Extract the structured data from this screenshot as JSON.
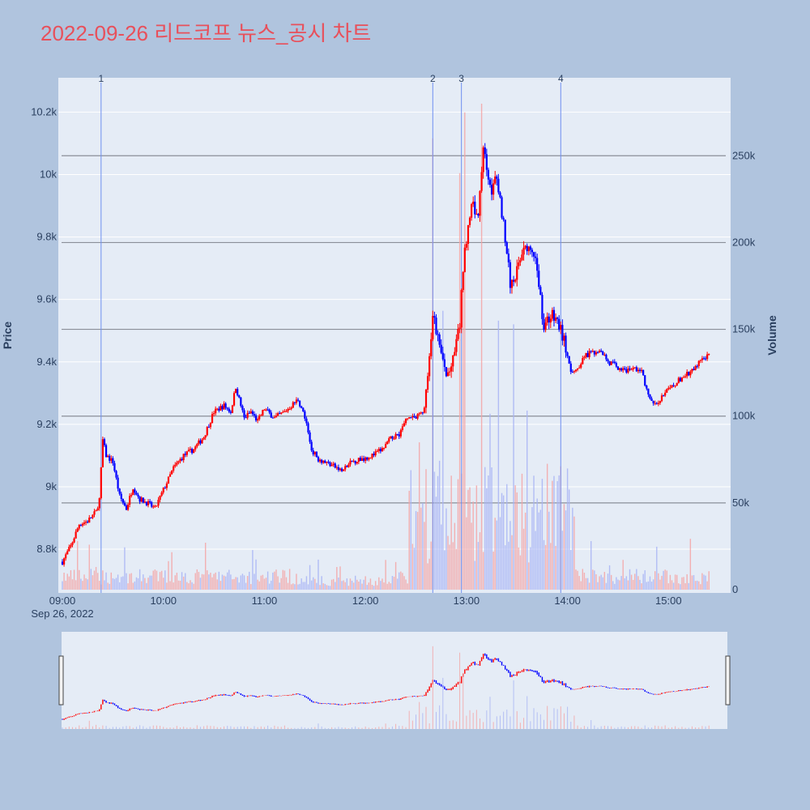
{
  "colors": {
    "background": "#b0c4de",
    "plot_bg": "#e5ecf6",
    "up": "#ff0000",
    "down": "#0000ff",
    "title": "#e8505b",
    "vline": "#6f8ff0"
  },
  "chart_data": {
    "type": "candlestick",
    "title": "2022-09-26 리드코프 뉴스_공시 차트",
    "ylabel": "Price",
    "y2label": "Volume",
    "x_date_label": "Sep 26, 2022",
    "x_ticks": [
      "09:00",
      "10:00",
      "11:00",
      "12:00",
      "13:00",
      "14:00",
      "15:00"
    ],
    "y_ticks": [
      "8.8k",
      "9k",
      "9.2k",
      "9.4k",
      "9.6k",
      "9.8k",
      "10k",
      "10.2k"
    ],
    "y_tick_values": [
      8800,
      9000,
      9200,
      9400,
      9600,
      9800,
      10000,
      10200
    ],
    "y2_ticks": [
      "0",
      "50k",
      "100k",
      "150k",
      "200k",
      "250k"
    ],
    "y2_tick_values": [
      0,
      50000,
      100000,
      150000,
      200000,
      250000
    ],
    "x_range_minutes": [
      0,
      394
    ],
    "price_range": [
      8660,
      10310
    ],
    "volume_range": [
      0,
      280000
    ],
    "annotations": [
      {
        "label": "1",
        "minute": 23
      },
      {
        "label": "2",
        "minute": 220
      },
      {
        "label": "3",
        "minute": 237
      },
      {
        "label": "4",
        "minute": 296
      }
    ],
    "price_path": [
      [
        0,
        8760
      ],
      [
        5,
        8810
      ],
      [
        10,
        8880
      ],
      [
        15,
        8890
      ],
      [
        20,
        8920
      ],
      [
        22,
        8960
      ],
      [
        24,
        9150
      ],
      [
        26,
        9100
      ],
      [
        30,
        9080
      ],
      [
        34,
        8970
      ],
      [
        38,
        8930
      ],
      [
        42,
        9000
      ],
      [
        46,
        8960
      ],
      [
        50,
        8950
      ],
      [
        55,
        8930
      ],
      [
        60,
        8990
      ],
      [
        66,
        9060
      ],
      [
        72,
        9100
      ],
      [
        78,
        9120
      ],
      [
        84,
        9160
      ],
      [
        90,
        9240
      ],
      [
        96,
        9260
      ],
      [
        100,
        9240
      ],
      [
        103,
        9320
      ],
      [
        108,
        9220
      ],
      [
        112,
        9240
      ],
      [
        116,
        9210
      ],
      [
        120,
        9250
      ],
      [
        126,
        9220
      ],
      [
        132,
        9240
      ],
      [
        136,
        9260
      ],
      [
        140,
        9280
      ],
      [
        144,
        9220
      ],
      [
        148,
        9120
      ],
      [
        152,
        9090
      ],
      [
        156,
        9080
      ],
      [
        160,
        9070
      ],
      [
        166,
        9050
      ],
      [
        172,
        9080
      ],
      [
        178,
        9090
      ],
      [
        184,
        9100
      ],
      [
        190,
        9120
      ],
      [
        196,
        9160
      ],
      [
        200,
        9170
      ],
      [
        206,
        9230
      ],
      [
        210,
        9220
      ],
      [
        215,
        9250
      ],
      [
        218,
        9400
      ],
      [
        220,
        9550
      ],
      [
        224,
        9450
      ],
      [
        228,
        9350
      ],
      [
        232,
        9400
      ],
      [
        236,
        9520
      ],
      [
        238,
        9700
      ],
      [
        241,
        9850
      ],
      [
        244,
        9900
      ],
      [
        247,
        9850
      ],
      [
        250,
        10100
      ],
      [
        254,
        9950
      ],
      [
        258,
        9980
      ],
      [
        262,
        9850
      ],
      [
        266,
        9650
      ],
      [
        270,
        9690
      ],
      [
        274,
        9780
      ],
      [
        278,
        9750
      ],
      [
        282,
        9700
      ],
      [
        286,
        9510
      ],
      [
        290,
        9550
      ],
      [
        294,
        9530
      ],
      [
        298,
        9470
      ],
      [
        302,
        9360
      ],
      [
        306,
        9380
      ],
      [
        310,
        9420
      ],
      [
        315,
        9430
      ],
      [
        320,
        9440
      ],
      [
        324,
        9400
      ],
      [
        328,
        9390
      ],
      [
        334,
        9370
      ],
      [
        340,
        9380
      ],
      [
        344,
        9370
      ],
      [
        348,
        9290
      ],
      [
        352,
        9260
      ],
      [
        356,
        9290
      ],
      [
        362,
        9320
      ],
      [
        368,
        9350
      ],
      [
        374,
        9370
      ],
      [
        380,
        9410
      ],
      [
        384,
        9420
      ]
    ]
  }
}
